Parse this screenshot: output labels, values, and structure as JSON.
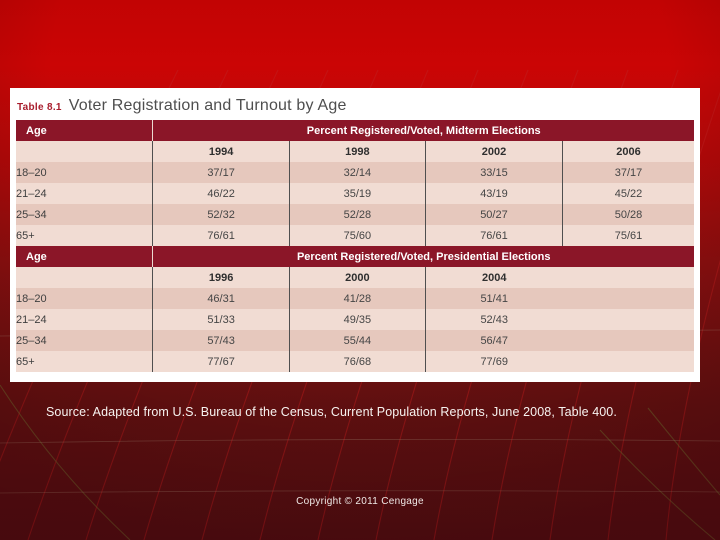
{
  "table": {
    "label": "Table 8.1",
    "title": "Voter Registration and Turnout by Age",
    "column_count": 5,
    "sections": [
      {
        "age_header": "Age",
        "header": "Percent Registered/Voted, Midterm Elections",
        "years": [
          "1994",
          "1998",
          "2002",
          "2006"
        ],
        "rows": [
          {
            "age": "18–20",
            "values": [
              "37/17",
              "32/14",
              "33/15",
              "37/17"
            ]
          },
          {
            "age": "21–24",
            "values": [
              "46/22",
              "35/19",
              "43/19",
              "45/22"
            ]
          },
          {
            "age": "25–34",
            "values": [
              "52/32",
              "52/28",
              "50/27",
              "50/28"
            ]
          },
          {
            "age": "65+",
            "values": [
              "76/61",
              "75/60",
              "76/61",
              "75/61"
            ]
          }
        ]
      },
      {
        "age_header": "Age",
        "header": "Percent Registered/Voted, Presidential Elections",
        "years": [
          "1996",
          "2000",
          "2004"
        ],
        "rows": [
          {
            "age": "18–20",
            "values": [
              "46/31",
              "41/28",
              "51/41"
            ]
          },
          {
            "age": "21–24",
            "values": [
              "51/33",
              "49/35",
              "52/43"
            ]
          },
          {
            "age": "25–34",
            "values": [
              "57/43",
              "55/44",
              "56/47"
            ]
          },
          {
            "age": "65+",
            "values": [
              "77/67",
              "76/68",
              "77/69"
            ]
          }
        ]
      }
    ]
  },
  "footer": {
    "source_text": "Source: Adapted from U.S. Bureau of the Census, Current Population Reports, June 2008, Table 400.",
    "copyright_text": "Copyright © 2011 Cengage"
  },
  "colors": {
    "background_top": "#c90404",
    "background_bottom": "#5a1013",
    "header_maroon": "#8b1628",
    "row_light": "#f1dcd3",
    "row_dark": "#e6c8bd",
    "table_label_red": "#a81c2c",
    "ray_red": "#c11d1d",
    "ray_olive": "#7a7a33"
  }
}
